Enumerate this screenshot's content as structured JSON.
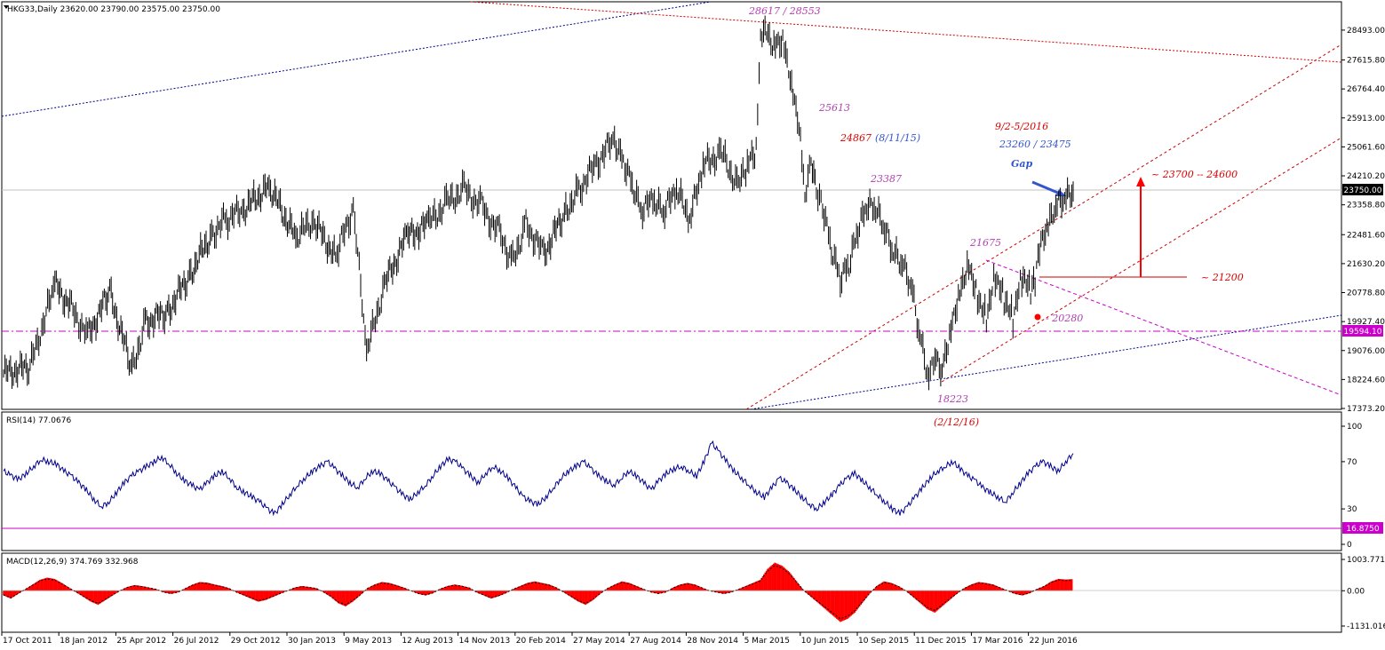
{
  "panels": {
    "price_label": "HKG33,Daily  23620.00 23790.00 23575.00 23750.00",
    "rsi_label": "RSI(14) 77.0676",
    "macd_label": "MACD(12,26,9) 374.769 332.968"
  },
  "colors": {
    "price_line": "#000000",
    "rsi_line": "#00008b",
    "macd_hist": "#ff0000",
    "signal_line": "#000000",
    "blue_trend": "#00008b",
    "red_trend": "#cc0000",
    "magenta": "#cc00cc",
    "current_price_bg": "#000000"
  },
  "chart_data": [
    {
      "type": "line",
      "name": "price",
      "ylim": [
        17373.2,
        29300
      ],
      "yticks": [
        "28493.00",
        "27615.80",
        "26764.40",
        "25913.00",
        "25061.60",
        "24210.20",
        "23358.80",
        "22481.60",
        "21630.20",
        "20778.80",
        "19927.40",
        "19076.00",
        "18224.60",
        "17373.20"
      ],
      "current_price": "23750.00",
      "horizontal_level": "19594.10",
      "x_dates": [
        "17 Oct 2011",
        "18 Jan 2012",
        "25 Apr 2012",
        "26 Jul 2012",
        "29 Oct 2012",
        "30 Jan 2013",
        "9 May 2013",
        "12 Aug 2013",
        "14 Nov 2013",
        "20 Feb 2014",
        "27 May 2014",
        "27 Aug 2014",
        "28 Nov 2014",
        "5 Mar 2015",
        "10 Jun 2015",
        "10 Sep 2015",
        "11 Dec 2015",
        "17 Mar 2016",
        "22 Jun 2016"
      ],
      "x": [
        0,
        30,
        58,
        75,
        95,
        120,
        145,
        160,
        185,
        210,
        235,
        250,
        270,
        300,
        330,
        350,
        375,
        395,
        410,
        430,
        455,
        480,
        500,
        520,
        540,
        560,
        575,
        590,
        610,
        635,
        650,
        670,
        690,
        700,
        710,
        720,
        735,
        745,
        760,
        775,
        790,
        810,
        830,
        840,
        850,
        855,
        860,
        870,
        880,
        890,
        900,
        905,
        912,
        918,
        925,
        935,
        945,
        955,
        965,
        975,
        985,
        995,
        1005,
        1015,
        1025,
        1035,
        1045,
        1052,
        1060,
        1070,
        1080,
        1090,
        1100,
        1110,
        1120,
        1130,
        1140,
        1150,
        1160,
        1165,
        1170,
        1180,
        1190,
        1200,
        1208
      ],
      "y": [
        18400,
        18600,
        21000,
        20400,
        19500,
        20800,
        18500,
        19900,
        20200,
        21300,
        22500,
        22900,
        23200,
        23900,
        22400,
        22900,
        21800,
        23300,
        19000,
        21000,
        22400,
        22800,
        23400,
        23800,
        23300,
        22500,
        21700,
        22800,
        21900,
        23200,
        23800,
        24600,
        25300,
        24700,
        24000,
        23200,
        23500,
        23100,
        23800,
        22900,
        24500,
        24900,
        23900,
        24500,
        25000,
        28200,
        28500,
        28100,
        28300,
        27000,
        25500,
        23700,
        24800,
        23900,
        23400,
        22100,
        21200,
        21600,
        22600,
        23300,
        23200,
        22600,
        21900,
        21600,
        21000,
        19500,
        18300,
        18900,
        18600,
        19800,
        20900,
        21700,
        20700,
        20100,
        21300,
        20600,
        20000,
        21200,
        20800,
        21100,
        22000,
        22700,
        23300,
        23500,
        23750
      ],
      "annotations": [
        "28617 / 28553",
        "25613",
        "24867",
        "(8/11/15)",
        "23387",
        "21675",
        "18223",
        "(2/12/16)",
        "9/2-5/2016",
        "23260 / 23475",
        "Gap",
        "~ 23700 -- 24600",
        "~ 21200",
        "- 20280"
      ]
    },
    {
      "type": "line",
      "name": "RSI(14)",
      "ylim": [
        0,
        100
      ],
      "yticks": [
        "100",
        "70",
        "30",
        "0"
      ],
      "level": "16.8750",
      "values": [
        62,
        58,
        55,
        60,
        66,
        72,
        70,
        68,
        62,
        58,
        52,
        46,
        38,
        32,
        36,
        44,
        52,
        58,
        62,
        66,
        70,
        74,
        68,
        60,
        54,
        50,
        46,
        52,
        58,
        62,
        56,
        48,
        44,
        40,
        36,
        30,
        26,
        34,
        42,
        50,
        56,
        62,
        66,
        70,
        64,
        58,
        52,
        48,
        56,
        62,
        60,
        54,
        48,
        42,
        38,
        44,
        50,
        58,
        66,
        72,
        70,
        64,
        58,
        52,
        60,
        66,
        62,
        56,
        48,
        40,
        36,
        34,
        40,
        48,
        56,
        62,
        66,
        70,
        64,
        58,
        54,
        50,
        56,
        62,
        58,
        52,
        46,
        54,
        60,
        64,
        66,
        62,
        58,
        70,
        86,
        78,
        70,
        62,
        56,
        50,
        44,
        40,
        48,
        56,
        52,
        46,
        40,
        34,
        30,
        36,
        42,
        50,
        56,
        60,
        54,
        48,
        42,
        36,
        30,
        26,
        32,
        40,
        48,
        56,
        62,
        66,
        70,
        64,
        58,
        54,
        48,
        44,
        40,
        36,
        44,
        52,
        60,
        66,
        70,
        66,
        62,
        70,
        77
      ]
    },
    {
      "type": "bar",
      "name": "MACD(12,26,9)",
      "ylim": [
        -1131.016,
        1003.771
      ],
      "yticks": [
        "1003.771",
        "0.00",
        "-1131.016"
      ],
      "values": [
        -150,
        -250,
        -100,
        50,
        200,
        350,
        420,
        380,
        250,
        100,
        -50,
        -200,
        -350,
        -450,
        -300,
        -150,
        0,
        120,
        180,
        150,
        100,
        50,
        -50,
        -100,
        -50,
        80,
        200,
        280,
        260,
        200,
        150,
        80,
        -50,
        -150,
        -250,
        -350,
        -300,
        -200,
        -100,
        0,
        100,
        150,
        120,
        80,
        -50,
        -200,
        -400,
        -500,
        -350,
        -150,
        80,
        200,
        280,
        250,
        180,
        100,
        0,
        -100,
        -150,
        -80,
        60,
        150,
        200,
        160,
        100,
        -50,
        -150,
        -250,
        -180,
        -80,
        50,
        150,
        250,
        300,
        250,
        200,
        100,
        -50,
        -200,
        -350,
        -450,
        -300,
        -100,
        80,
        200,
        300,
        250,
        150,
        50,
        -50,
        -100,
        -50,
        100,
        200,
        250,
        200,
        100,
        0,
        -50,
        -100,
        -50,
        50,
        150,
        250,
        350,
        700,
        900,
        800,
        600,
        300,
        0,
        -200,
        -400,
        -600,
        -800,
        -1000,
        -900,
        -700,
        -400,
        -100,
        150,
        300,
        250,
        150,
        0,
        -200,
        -400,
        -600,
        -700,
        -500,
        -300,
        -100,
        80,
        200,
        280,
        250,
        200,
        100,
        0,
        -100,
        -150,
        -80,
        50,
        150,
        300,
        380,
        360,
        374
      ]
    }
  ]
}
